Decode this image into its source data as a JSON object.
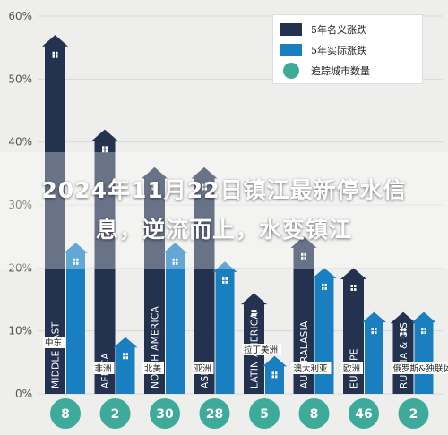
{
  "colors": {
    "nominal": "#22324f",
    "real": "#1a7fc0",
    "count": "#3eaa9a",
    "axis_text": "#555555",
    "background": "#eeeeec"
  },
  "legend": {
    "nominal_label": "5年名义涨跌",
    "real_label": "5年实际涨跌",
    "count_label": "追踪城市数量"
  },
  "banner": {
    "text": "2024年11月22日镇江最新停水信息，逆流而上，水变镇江"
  },
  "chart_data": {
    "type": "bar",
    "ylim": [
      0,
      60
    ],
    "yticks": [
      "0%",
      "10%",
      "20%",
      "30%",
      "40%",
      "50%",
      "60%"
    ],
    "grid": true,
    "legend_position": "top-right",
    "categories": [
      "MIDDLE EAST",
      "AFRICA",
      "NORTH AMERICA",
      "ASIA",
      "LATIN AMERICA",
      "AUSTRALASIA",
      "EUROPE",
      "RUSSIA & CIS"
    ],
    "category_labels_cn": [
      "中东",
      "非洲",
      "北美",
      "亚洲",
      "拉丁美洲",
      "澳大利亚",
      "欧洲",
      "俄罗斯&独联体"
    ],
    "series": [
      {
        "name": "5年名义涨跌",
        "values": [
          57,
          42,
          36,
          36,
          16,
          25,
          20,
          13
        ]
      },
      {
        "name": "5年实际涨跌",
        "values": [
          24,
          9,
          24,
          21,
          6,
          20,
          13,
          13
        ]
      }
    ],
    "city_counts": [
      "8",
      "2",
      "30",
      "28",
      "5",
      "8",
      "46",
      "2"
    ]
  }
}
